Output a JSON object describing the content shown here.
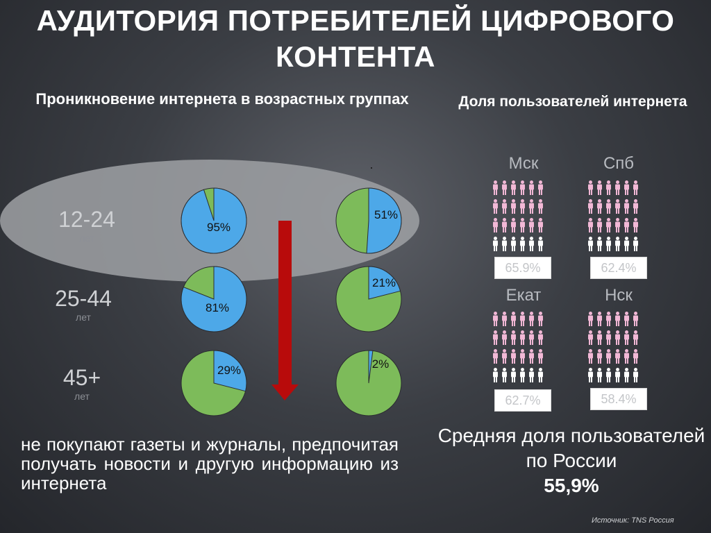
{
  "title": "АУДИТОРИЯ ПОТРЕБИТЕЛЕЙ ЦИФРОВОГО КОНТЕНТА",
  "left_subtitle": "Проникновение интернета в возрастных группах",
  "right_subtitle": "Доля пользователей интернета",
  "age_groups": [
    {
      "label": "12-24",
      "unit": "лет"
    },
    {
      "label": "25-44",
      "unit": "лет"
    },
    {
      "label": "45+",
      "unit": "лет"
    }
  ],
  "cities": [
    {
      "name": "Мск",
      "value": "65.9%"
    },
    {
      "name": "Спб",
      "value": "62.4%"
    },
    {
      "name": "Екат",
      "value": "62.7%"
    },
    {
      "name": "Нск",
      "value": "58.4%"
    }
  ],
  "bottom_text": "не покупают газеты и журналы, предпочитая получать новости и другую информацию из интернета",
  "average": {
    "label": "Средняя доля пользователей по России",
    "value": "55,9%"
  },
  "source": "Источник:  TNS Россия",
  "colors": {
    "blue": "#4da8e8",
    "green": "#7dbb5a",
    "arrow_red": "#b80b0b",
    "person_pink": "#f2b8d6",
    "person_white": "#ffffff"
  },
  "chart_data": [
    {
      "type": "pie",
      "title": "",
      "categories": [
        "12-24",
        "25-44",
        "45+"
      ],
      "series": [
        {
          "values": [
            95,
            81,
            29
          ],
          "labels": [
            "95%",
            "81%",
            "29%"
          ]
        }
      ]
    },
    {
      "type": "pie",
      "title": "",
      "categories": [
        "12-24",
        "25-44",
        "45+"
      ],
      "series": [
        {
          "values": [
            51,
            21,
            2
          ],
          "labels": [
            "51%",
            "21%",
            "2%"
          ]
        }
      ]
    }
  ]
}
